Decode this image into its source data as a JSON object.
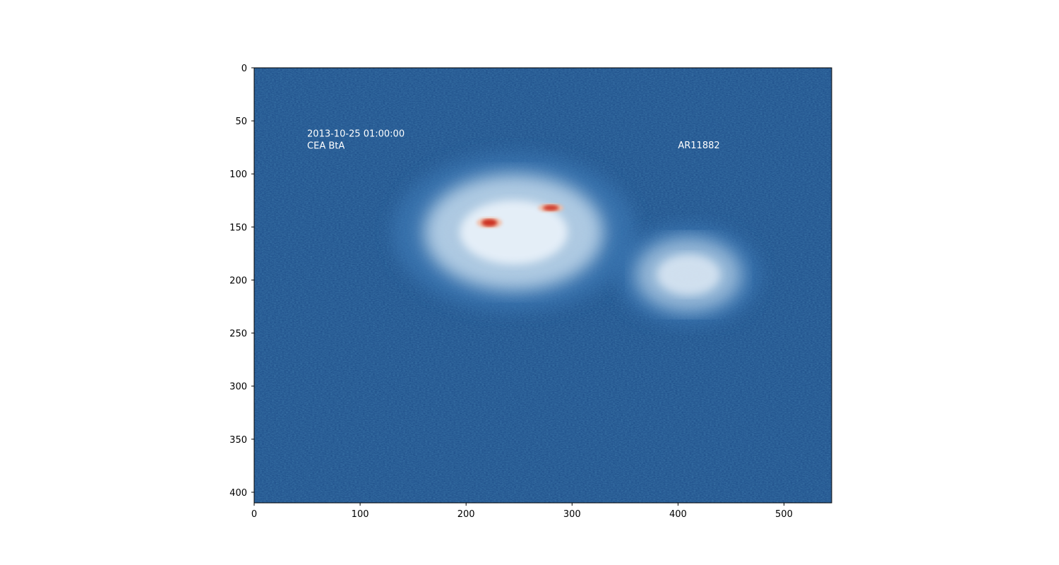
{
  "chart_data": {
    "type": "heatmap",
    "title": "",
    "xlabel": "",
    "ylabel": "",
    "xlim": [
      0,
      545
    ],
    "ylim": [
      410,
      0
    ],
    "x_ticks": [
      0,
      100,
      200,
      300,
      400,
      500
    ],
    "y_ticks": [
      0,
      50,
      100,
      150,
      200,
      250,
      300,
      350,
      400
    ],
    "grid": false,
    "colormap": "RdBu_r",
    "colors": {
      "background": "#1f4f8a",
      "mid": "#3d79b5",
      "light": "#d6e7f4",
      "white": "#f7fbff",
      "hot": "#cc3322"
    },
    "features": [
      {
        "name": "main-region",
        "cx": 245,
        "cy": 155,
        "rx": 85,
        "ry": 55,
        "level": 0.75
      },
      {
        "name": "secondary-region",
        "cx": 410,
        "cy": 195,
        "rx": 50,
        "ry": 35,
        "level": 0.6
      },
      {
        "name": "hot-spot-1",
        "cx": 222,
        "cy": 146,
        "rx": 12,
        "ry": 5,
        "level": 1.0
      },
      {
        "name": "hot-spot-2",
        "cx": 280,
        "cy": 132,
        "rx": 12,
        "ry": 4,
        "level": 0.9
      }
    ],
    "annotations": [
      {
        "x": 50,
        "y": 65,
        "lines": [
          "2013-10-25 01:00:00",
          "CEA BtA"
        ]
      },
      {
        "x": 400,
        "y": 76,
        "lines": [
          "AR11882"
        ]
      }
    ]
  }
}
